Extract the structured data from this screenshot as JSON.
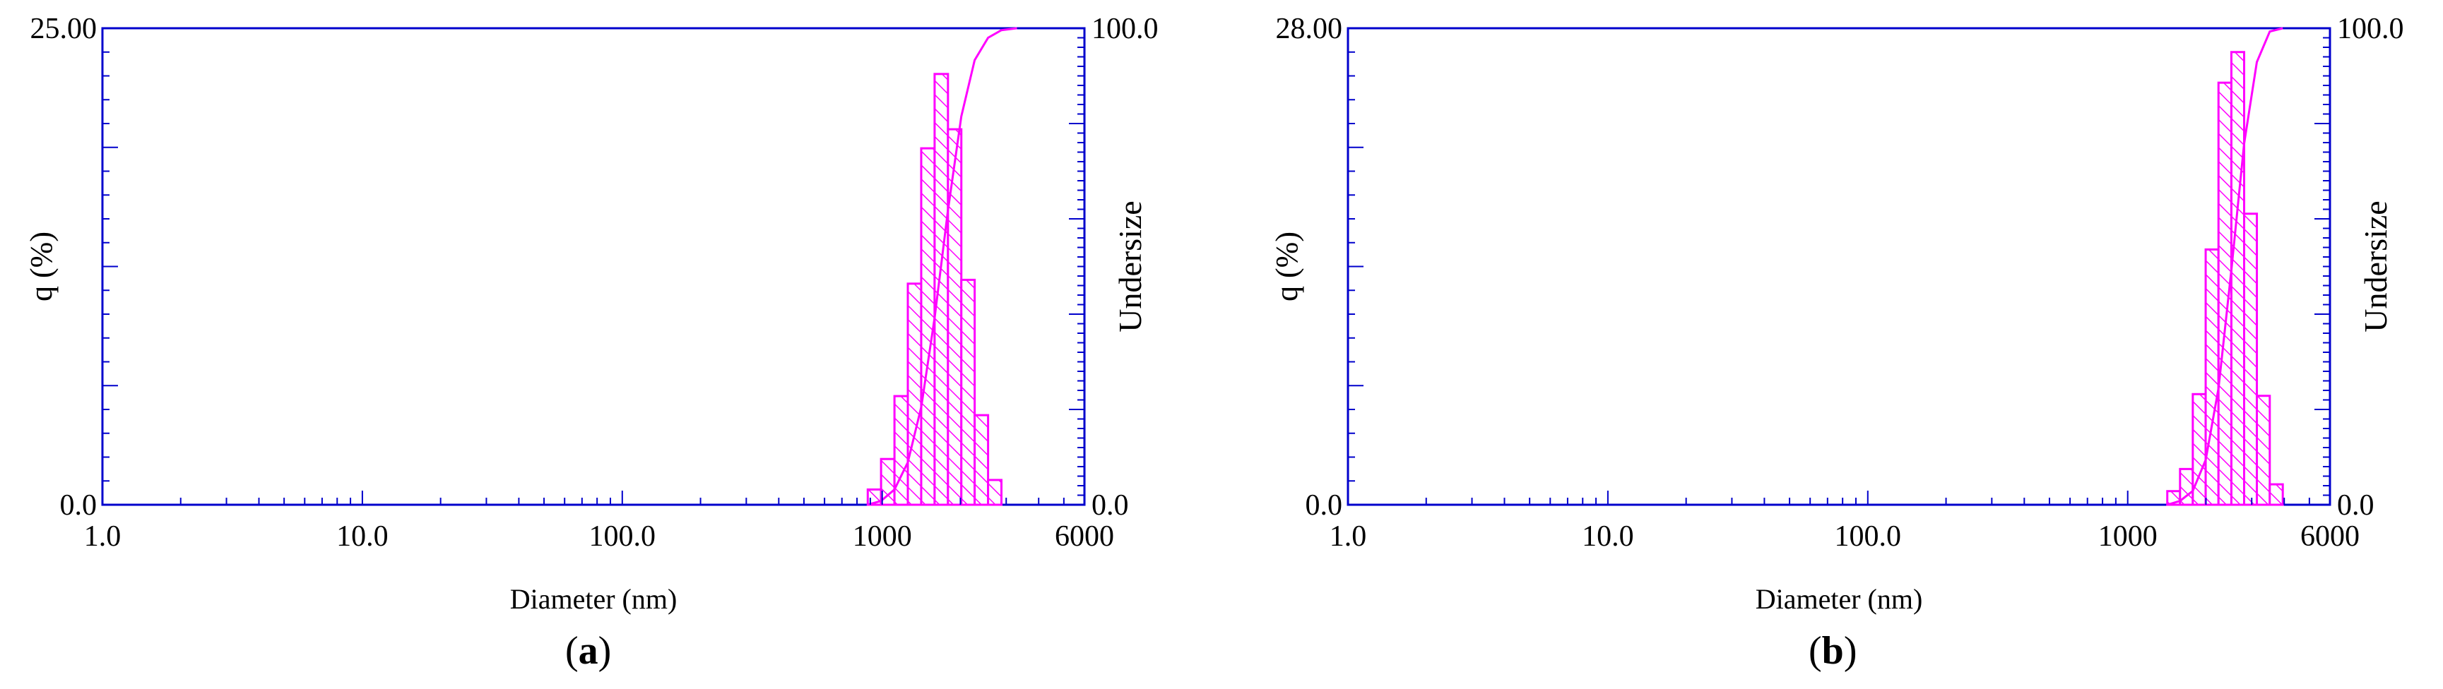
{
  "colors": {
    "axis": "#0000cc",
    "bars": "#ff00ff",
    "text": "#000000"
  },
  "chart_data": [
    {
      "type": "bar",
      "panel_label": "a",
      "xlabel": "Diameter (nm)",
      "ylabel": "q (%)",
      "y2label": "Undersize",
      "x_scale": "log",
      "xlim": [
        1.0,
        6000
      ],
      "ylim": [
        0,
        25.0
      ],
      "y2lim": [
        0,
        100.0
      ],
      "x_tick_labels": [
        {
          "value": 1,
          "label": "1.0"
        },
        {
          "value": 10,
          "label": "10.0"
        },
        {
          "value": 100,
          "label": "100.0"
        },
        {
          "value": 1000,
          "label": "1000"
        },
        {
          "value": 6000,
          "label": "6000"
        }
      ],
      "y_tick_labels": {
        "min": "0.0",
        "max": "25.00"
      },
      "y2_tick_labels": {
        "min": "0.0",
        "max": "100.0"
      },
      "bars": [
        {
          "x0": 880,
          "x1": 990,
          "q": 0.8
        },
        {
          "x0": 990,
          "x1": 1115,
          "q": 2.4
        },
        {
          "x0": 1115,
          "x1": 1255,
          "q": 5.7
        },
        {
          "x0": 1255,
          "x1": 1413,
          "q": 11.6
        },
        {
          "x0": 1413,
          "x1": 1591,
          "q": 18.7
        },
        {
          "x0": 1591,
          "x1": 1791,
          "q": 22.6
        },
        {
          "x0": 1791,
          "x1": 2016,
          "q": 19.7
        },
        {
          "x0": 2016,
          "x1": 2269,
          "q": 11.8
        },
        {
          "x0": 2269,
          "x1": 2555,
          "q": 4.7
        },
        {
          "x0": 2555,
          "x1": 2876,
          "q": 1.3
        }
      ],
      "undersize": [
        {
          "x": 880,
          "y": 0
        },
        {
          "x": 990,
          "y": 0.8
        },
        {
          "x": 1115,
          "y": 3.2
        },
        {
          "x": 1255,
          "y": 8.9
        },
        {
          "x": 1413,
          "y": 20.5
        },
        {
          "x": 1591,
          "y": 39.2
        },
        {
          "x": 1791,
          "y": 61.8
        },
        {
          "x": 2016,
          "y": 81.5
        },
        {
          "x": 2269,
          "y": 93.3
        },
        {
          "x": 2555,
          "y": 98.0
        },
        {
          "x": 2876,
          "y": 99.6
        },
        {
          "x": 3300,
          "y": 100
        }
      ]
    },
    {
      "type": "bar",
      "panel_label": "b",
      "xlabel": "Diameter (nm)",
      "ylabel": "q (%)",
      "y2label": "Undersize",
      "x_scale": "log",
      "xlim": [
        1.0,
        6000
      ],
      "ylim": [
        0,
        28.0
      ],
      "y2lim": [
        0,
        100.0
      ],
      "x_tick_labels": [
        {
          "value": 1,
          "label": "1.0"
        },
        {
          "value": 10,
          "label": "10.0"
        },
        {
          "value": 100,
          "label": "100.0"
        },
        {
          "value": 1000,
          "label": "1000"
        },
        {
          "value": 6000,
          "label": "6000"
        }
      ],
      "y_tick_labels": {
        "min": "0.0",
        "max": "28.00"
      },
      "y2_tick_labels": {
        "min": "0.0",
        "max": "100.0"
      },
      "bars": [
        {
          "x0": 1420,
          "x1": 1590,
          "q": 0.8
        },
        {
          "x0": 1590,
          "x1": 1780,
          "q": 2.1
        },
        {
          "x0": 1780,
          "x1": 1995,
          "q": 6.5
        },
        {
          "x0": 1995,
          "x1": 2235,
          "q": 15.0
        },
        {
          "x0": 2235,
          "x1": 2505,
          "q": 24.8
        },
        {
          "x0": 2505,
          "x1": 2805,
          "q": 26.6
        },
        {
          "x0": 2805,
          "x1": 3140,
          "q": 17.1
        },
        {
          "x0": 3140,
          "x1": 3520,
          "q": 6.4
        },
        {
          "x0": 3520,
          "x1": 3950,
          "q": 1.2
        }
      ],
      "undersize": [
        {
          "x": 1420,
          "y": 0
        },
        {
          "x": 1590,
          "y": 0.8
        },
        {
          "x": 1780,
          "y": 2.9
        },
        {
          "x": 1995,
          "y": 9.4
        },
        {
          "x": 2235,
          "y": 24.4
        },
        {
          "x": 2505,
          "y": 49.2
        },
        {
          "x": 2805,
          "y": 75.8
        },
        {
          "x": 3140,
          "y": 92.9
        },
        {
          "x": 3520,
          "y": 99.3
        },
        {
          "x": 3950,
          "y": 100
        }
      ]
    }
  ]
}
